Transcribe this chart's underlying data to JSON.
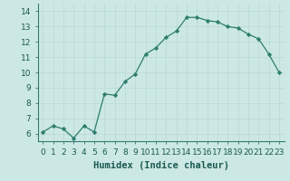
{
  "x": [
    0,
    1,
    2,
    3,
    4,
    5,
    6,
    7,
    8,
    9,
    10,
    11,
    12,
    13,
    14,
    15,
    16,
    17,
    18,
    19,
    20,
    21,
    22,
    23
  ],
  "y": [
    6.1,
    6.5,
    6.3,
    5.7,
    6.5,
    6.1,
    8.6,
    8.5,
    9.4,
    9.9,
    11.2,
    11.6,
    12.3,
    12.7,
    13.6,
    13.6,
    13.4,
    13.3,
    13.0,
    12.9,
    12.5,
    12.2,
    11.2,
    10.0
  ],
  "xlabel": "Humidex (Indice chaleur)",
  "xlim": [
    -0.5,
    23.5
  ],
  "ylim": [
    5.5,
    14.5
  ],
  "yticks": [
    6,
    7,
    8,
    9,
    10,
    11,
    12,
    13,
    14
  ],
  "xticks": [
    0,
    1,
    2,
    3,
    4,
    5,
    6,
    7,
    8,
    9,
    10,
    11,
    12,
    13,
    14,
    15,
    16,
    17,
    18,
    19,
    20,
    21,
    22,
    23
  ],
  "line_color": "#2e7d6e",
  "marker_color": "#2e7d6e",
  "bg_color": "#cce8e4",
  "grid_color_major": "#b8d8d4",
  "grid_color_minor": "#d4ecea",
  "xlabel_fontsize": 7.5,
  "tick_fontsize": 6.5
}
